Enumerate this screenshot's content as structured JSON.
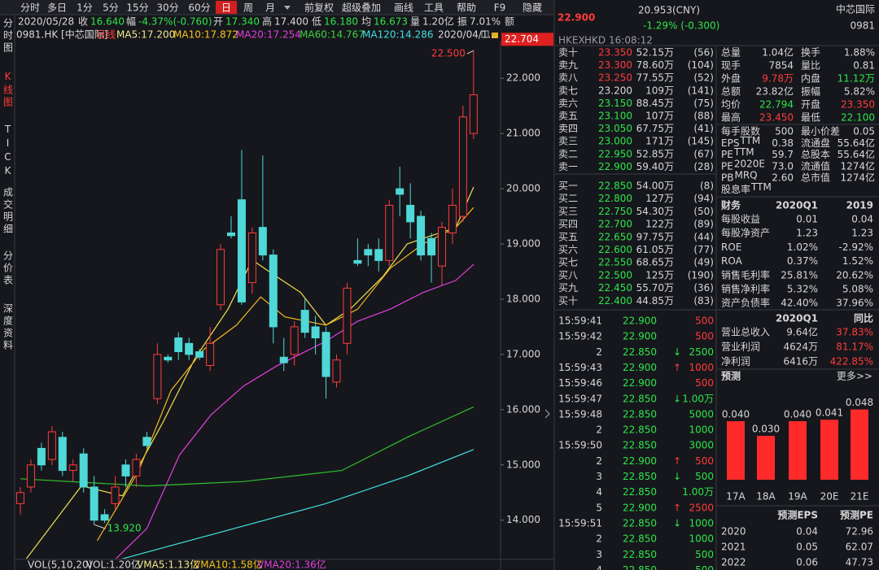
{
  "toolbar": {
    "tabs": [
      "分时",
      "多日",
      "1分",
      "5分",
      "15分",
      "30分",
      "60分",
      "日",
      "周",
      "月"
    ],
    "active": 7,
    "tools": [
      "前复权",
      "超级叠加",
      "画线",
      "工具",
      "帮助",
      "F9",
      "隐藏"
    ]
  },
  "quote_bar": {
    "date": "2020/05/28",
    "items": [
      {
        "label": "收",
        "value": "16.640",
        "color": "#2ee64a"
      },
      {
        "label": "幅",
        "value": "-4.37%(-0.760)",
        "color": "#2ee64a"
      },
      {
        "label": "开",
        "value": "17.340",
        "color": "#2ee64a"
      },
      {
        "label": "高",
        "value": "17.400",
        "color": "#d8d8d8"
      },
      {
        "label": "低",
        "value": "16.180",
        "color": "#2ee64a"
      },
      {
        "label": "均",
        "value": "16.673",
        "color": "#2ee64a"
      },
      {
        "label": "量",
        "value": "1.20亿",
        "color": "#d8d8d8"
      },
      {
        "label": "振",
        "value": "7.01%",
        "color": "#d8d8d8"
      },
      {
        "label": "额"
      }
    ]
  },
  "legend": {
    "symbol": "0981.HK [中芯国际]",
    "period": "日线",
    "ma": [
      {
        "text": "MA5:17.200",
        "color": "#f0e68c"
      },
      {
        "text": "MA10:17.872",
        "color": "#f5c518"
      },
      {
        "text": "MA20:17.254",
        "color": "#e040e0"
      },
      {
        "text": "MA60:14.767",
        "color": "#40d040"
      },
      {
        "text": "MA120:14.286",
        "color": "#40e0e0"
      }
    ],
    "date": "2020/04/1..."
  },
  "sidebar": [
    "分时图",
    "K线图",
    "TICK",
    "成交明细",
    "分价表",
    "深度资料"
  ],
  "sidebar_active": 1,
  "kline": {
    "type": "candlestick",
    "ylim": [
      13.26,
      22.68
    ],
    "yticks": [
      {
        "value": 22,
        "label": "22.000"
      },
      {
        "value": 21,
        "label": "21.000"
      },
      {
        "value": 20,
        "label": "20.000"
      },
      {
        "value": 19,
        "label": "19.000"
      },
      {
        "value": 18,
        "label": "18.000"
      },
      {
        "value": 17,
        "label": "17.000"
      },
      {
        "value": 16,
        "label": "16.000"
      },
      {
        "value": 15,
        "label": "15.000"
      },
      {
        "value": 14,
        "label": "14.000"
      }
    ],
    "last_price": {
      "value": 22.704,
      "label": "22.704"
    },
    "annotations": [
      {
        "label": "22.500",
        "value": 22.5,
        "index": 43
      },
      {
        "label": "13.920",
        "value": 13.92,
        "index": 7
      }
    ],
    "up_color": "#ff3b3b",
    "down_color": "#4fd8d8",
    "ohlc": [
      [
        14.3,
        14.6,
        14.1,
        14.5
      ],
      [
        14.6,
        15.1,
        14.5,
        15.0
      ],
      [
        15.3,
        15.4,
        14.9,
        15.0
      ],
      [
        15.1,
        15.7,
        15.0,
        15.6
      ],
      [
        15.5,
        15.6,
        14.8,
        14.9
      ],
      [
        14.9,
        15.1,
        14.7,
        15.0
      ],
      [
        15.2,
        15.3,
        14.5,
        14.6
      ],
      [
        14.6,
        14.8,
        13.92,
        14.0
      ],
      [
        14.1,
        14.2,
        13.95,
        14.0
      ],
      [
        14.3,
        14.8,
        14.2,
        14.6
      ],
      [
        15.0,
        15.1,
        14.6,
        14.8
      ],
      [
        14.8,
        15.2,
        14.6,
        15.1
      ],
      [
        15.5,
        15.6,
        15.3,
        15.35
      ],
      [
        16.2,
        17.2,
        16.1,
        17.0
      ],
      [
        16.95,
        17.0,
        16.85,
        16.9
      ],
      [
        17.3,
        17.4,
        16.9,
        17.05
      ],
      [
        17.2,
        17.3,
        16.9,
        17.0
      ],
      [
        17.05,
        17.1,
        16.9,
        16.95
      ],
      [
        16.8,
        17.5,
        16.7,
        17.2
      ],
      [
        17.9,
        19.0,
        17.8,
        18.9
      ],
      [
        19.2,
        19.5,
        19.1,
        19.15
      ],
      [
        19.8,
        20.7,
        17.9,
        17.95
      ],
      [
        18.3,
        19.3,
        18.1,
        19.2
      ],
      [
        19.3,
        20.6,
        18.7,
        18.8
      ],
      [
        18.8,
        18.9,
        17.2,
        17.5
      ],
      [
        16.95,
        17.3,
        16.7,
        16.85
      ],
      [
        17.0,
        17.6,
        16.8,
        17.5
      ],
      [
        17.8,
        18.0,
        17.3,
        17.4
      ],
      [
        17.5,
        17.7,
        17.0,
        17.3
      ],
      [
        17.4,
        17.5,
        16.2,
        16.6
      ],
      [
        16.5,
        17.0,
        16.4,
        16.9
      ],
      [
        17.2,
        18.3,
        17.0,
        18.2
      ],
      [
        18.7,
        19.1,
        18.6,
        18.65
      ],
      [
        18.9,
        19.0,
        18.6,
        18.8
      ],
      [
        18.9,
        19.1,
        18.5,
        18.7
      ],
      [
        18.7,
        19.8,
        18.6,
        19.7
      ],
      [
        20.0,
        20.4,
        19.5,
        19.9
      ],
      [
        19.7,
        20.1,
        19.1,
        19.4
      ],
      [
        19.5,
        19.6,
        18.7,
        18.8
      ],
      [
        19.1,
        19.2,
        18.3,
        18.8
      ],
      [
        18.6,
        19.4,
        18.25,
        19.3
      ],
      [
        19.2,
        20.0,
        19.0,
        19.7
      ],
      [
        19.5,
        21.5,
        19.4,
        21.3
      ],
      [
        21.0,
        22.5,
        20.9,
        21.7
      ]
    ],
    "ma_lines": [
      {
        "color": "#f0e050",
        "x": [
          0.4,
          5.8,
          9.7,
          13.5,
          16.6,
          19.7,
          22.0,
          24.3,
          26.6,
          29.0,
          31.3,
          34.4,
          36.7,
          39.0,
          41.3,
          43
        ],
        "values": [
          13.26,
          14.62,
          14.44,
          15.76,
          16.94,
          17.82,
          18.71,
          18.41,
          18.12,
          17.53,
          17.82,
          18.41,
          19.0,
          19.15,
          19.29,
          20.03
        ]
      },
      {
        "color": "#f5b820",
        "x": [
          7.3,
          11.2,
          14.3,
          17.4,
          20.5,
          22.8,
          25.1,
          29.0,
          32.0,
          35.1,
          38.2,
          41.3,
          43
        ],
        "values": [
          13.63,
          14.88,
          16.35,
          17.09,
          17.53,
          18.04,
          17.68,
          17.53,
          17.82,
          18.56,
          19.0,
          19.29,
          19.66
        ]
      },
      {
        "color": "#e040e0",
        "x": [
          8.9,
          12.0,
          15.1,
          18.1,
          21.2,
          24.3,
          29.0,
          32.0,
          35.1,
          38.2,
          41.3,
          43
        ],
        "values": [
          13.27,
          13.85,
          15.18,
          15.91,
          16.43,
          16.79,
          17.24,
          17.6,
          17.82,
          18.12,
          18.34,
          18.63
        ]
      },
      {
        "color": "#30c030",
        "x": [
          0,
          12.0,
          21.2,
          30.5,
          36.7,
          43
        ],
        "values": [
          14.75,
          14.62,
          14.7,
          14.9,
          15.5,
          16.05
        ]
      },
      {
        "color": "#40e0e0",
        "x": [
          5.8,
          17.4,
          29.0,
          36.7,
          43
        ],
        "values": [
          13.1,
          13.7,
          14.3,
          14.8,
          15.28
        ]
      }
    ]
  },
  "volume_legend": [
    {
      "text": "VOL(5,10,20)",
      "color": "#d8d8d8"
    },
    {
      "text": "VOL:1.20亿",
      "color": "#d8d8d8"
    },
    {
      "text": "VMA5:1.13亿",
      "color": "#f0e68c"
    },
    {
      "text": "VMA10:1.58亿",
      "color": "#f5c518"
    },
    {
      "text": "VMA20:1.36亿",
      "color": "#e040e0"
    }
  ],
  "quote": {
    "price": "22.900",
    "cny": "20.953(CNY)",
    "change": "-1.29% (-0.300)",
    "name": "中芯国际",
    "code": "0981",
    "exchange": "HKEX",
    "currency": "HKD",
    "time": "16:08:12"
  },
  "order_book": {
    "asks": [
      {
        "label": "卖十",
        "price": "23.350",
        "volume": "52.15万",
        "count": "(56)",
        "color": "#ff3b3b"
      },
      {
        "label": "卖九",
        "price": "23.300",
        "volume": "78.60万",
        "count": "(104)",
        "color": "#ff3b3b"
      },
      {
        "label": "卖八",
        "price": "23.250",
        "volume": "77.55万",
        "count": "(52)",
        "color": "#ff3b3b"
      },
      {
        "label": "卖七",
        "price": "23.200",
        "volume": "109万",
        "count": "(141)",
        "color": "#d8d8d8"
      },
      {
        "label": "卖六",
        "price": "23.150",
        "volume": "88.45万",
        "count": "(75)",
        "color": "#2ee64a"
      },
      {
        "label": "卖五",
        "price": "23.100",
        "volume": "107万",
        "count": "(88)",
        "color": "#2ee64a"
      },
      {
        "label": "卖四",
        "price": "23.050",
        "volume": "67.75万",
        "count": "(41)",
        "color": "#2ee64a"
      },
      {
        "label": "卖三",
        "price": "23.000",
        "volume": "171万",
        "count": "(145)",
        "color": "#2ee64a"
      },
      {
        "label": "卖二",
        "price": "22.950",
        "volume": "52.85万",
        "count": "(67)",
        "color": "#2ee64a"
      },
      {
        "label": "卖一",
        "price": "22.900",
        "volume": "59.40万",
        "count": "(28)",
        "color": "#2ee64a"
      }
    ],
    "bids": [
      {
        "label": "买一",
        "price": "22.850",
        "volume": "54.00万",
        "count": "(8)",
        "color": "#2ee64a"
      },
      {
        "label": "买二",
        "price": "22.800",
        "volume": "127万",
        "count": "(94)",
        "color": "#2ee64a"
      },
      {
        "label": "买三",
        "price": "22.750",
        "volume": "54.30万",
        "count": "(50)",
        "color": "#2ee64a"
      },
      {
        "label": "买四",
        "price": "22.700",
        "volume": "122万",
        "count": "(89)",
        "color": "#2ee64a"
      },
      {
        "label": "买五",
        "price": "22.650",
        "volume": "97.75万",
        "count": "(44)",
        "color": "#2ee64a"
      },
      {
        "label": "买六",
        "price": "22.600",
        "volume": "61.05万",
        "count": "(77)",
        "color": "#2ee64a"
      },
      {
        "label": "买七",
        "price": "22.550",
        "volume": "68.65万",
        "count": "(49)",
        "color": "#2ee64a"
      },
      {
        "label": "买八",
        "price": "22.500",
        "volume": "125万",
        "count": "(190)",
        "color": "#2ee64a"
      },
      {
        "label": "买九",
        "price": "22.450",
        "volume": "55.70万",
        "count": "(36)",
        "color": "#2ee64a"
      },
      {
        "label": "买十",
        "price": "22.400",
        "volume": "44.85万",
        "count": "(83)",
        "color": "#2ee64a"
      }
    ]
  },
  "trades": [
    {
      "time": "15:59:41",
      "price": "22.900",
      "volume": "500",
      "color": "#ff3b3b"
    },
    {
      "time": "15:59:42",
      "price": "22.900",
      "volume": "500",
      "color": "#ff3b3b"
    },
    {
      "time": "2",
      "price": "22.850",
      "arrow": "↓",
      "volume": "2500",
      "color": "#2ee64a"
    },
    {
      "time": "15:59:43",
      "price": "22.900",
      "arrow": "↑",
      "volume": "1000",
      "color": "#ff3b3b"
    },
    {
      "time": "15:59:46",
      "price": "22.900",
      "volume": "500",
      "color": "#ff3b3b"
    },
    {
      "time": "15:59:47",
      "price": "22.850",
      "arrow": "↓",
      "volume": "1.00万",
      "color": "#2ee64a"
    },
    {
      "time": "15:59:48",
      "price": "22.850",
      "volume": "5000",
      "color": "#2ee64a"
    },
    {
      "time": "2",
      "price": "22.850",
      "volume": "1000",
      "color": "#2ee64a"
    },
    {
      "time": "15:59:50",
      "price": "22.850",
      "volume": "3000",
      "color": "#2ee64a"
    },
    {
      "time": "2",
      "price": "22.900",
      "arrow": "↑",
      "volume": "500",
      "color": "#ff3b3b"
    },
    {
      "time": "3",
      "price": "22.850",
      "arrow": "↓",
      "volume": "500",
      "color": "#2ee64a"
    },
    {
      "time": "4",
      "price": "22.850",
      "volume": "1.00万",
      "color": "#2ee64a"
    },
    {
      "time": "5",
      "price": "22.900",
      "arrow": "↑",
      "volume": "2500",
      "color": "#ff3b3b"
    },
    {
      "time": "15:59:51",
      "price": "22.850",
      "arrow": "↓",
      "volume": "1000",
      "color": "#2ee64a"
    },
    {
      "time": "2",
      "price": "22.850",
      "volume": "1000",
      "color": "#2ee64a"
    },
    {
      "time": "3",
      "price": "22.850",
      "volume": "500",
      "color": "#2ee64a"
    },
    {
      "time": "4",
      "price": "22.850",
      "volume": "500",
      "color": "#2ee64a"
    }
  ],
  "stats": [
    [
      {
        "label": "总量",
        "value": "1.04亿"
      },
      {
        "label": "换手",
        "value": "1.88%"
      }
    ],
    [
      {
        "label": "现手",
        "value": "7854"
      },
      {
        "label": "量比",
        "value": "0.81"
      }
    ],
    [
      {
        "label": "外盘",
        "value": "9.78万",
        "color": "#ff3b3b"
      },
      {
        "label": "内盘",
        "value": "11.12万",
        "color": "#2ee64a"
      }
    ],
    [
      {
        "label": "总额",
        "value": "23.82亿"
      },
      {
        "label": "振幅",
        "value": "5.82%"
      }
    ],
    [
      {
        "label": "均价",
        "value": "22.794",
        "color": "#2ee64a"
      },
      {
        "label": "开盘",
        "value": "23.350",
        "color": "#ff3b3b"
      }
    ],
    [
      {
        "label": "最高",
        "value": "23.450",
        "color": "#ff3b3b"
      },
      {
        "label": "最低",
        "value": "22.100",
        "color": "#2ee64a"
      }
    ]
  ],
  "stats2": [
    [
      {
        "label": "每手股数",
        "value": "500"
      },
      {
        "label": "最小价差",
        "value": "0.05"
      }
    ],
    [
      {
        "label": "EPS",
        "sup": "TTM",
        "value": "0.38"
      },
      {
        "label": "流通盘",
        "value": "55.64亿"
      }
    ],
    [
      {
        "label": "PE",
        "sup": "TTM",
        "value": "59.7"
      },
      {
        "label": "总股本",
        "value": "55.64亿"
      }
    ],
    [
      {
        "label": "PE",
        "sup": "2020E",
        "value": "73.0"
      },
      {
        "label": "流通值",
        "value": "1274亿"
      }
    ],
    [
      {
        "label": "PB",
        "sup": "MRQ",
        "value": "2.60"
      },
      {
        "label": "总市值",
        "value": "1274亿"
      }
    ],
    [
      {
        "label": "股息率",
        "sup": "TTM"
      }
    ]
  ],
  "finance": {
    "header": [
      "财务",
      "2020Q1",
      "2019"
    ],
    "rows": [
      [
        "每股收益",
        "0.01",
        "0.04"
      ],
      [
        "每股净资产",
        "1.23",
        "1.23"
      ],
      [
        "ROE",
        "1.02%",
        "-2.92%"
      ],
      [
        "ROA",
        "0.37%",
        "1.52%"
      ],
      [
        "销售毛利率",
        "25.81%",
        "20.62%"
      ],
      [
        "销售净利率",
        "5.32%",
        "5.08%"
      ],
      [
        "资产负债率",
        "42.40%",
        "37.96%"
      ]
    ]
  },
  "growth": {
    "header": [
      "2020Q1",
      "同比"
    ],
    "rows": [
      [
        "营业总收入",
        "9.64亿",
        "37.83%"
      ],
      [
        "营业利润",
        "4624万",
        "81.17%"
      ],
      [
        "净利润",
        "6416万",
        "422.85%"
      ]
    ],
    "change_color": "#ff3b3b"
  },
  "forecast": {
    "title": "预测",
    "more": "更多>>",
    "chart": {
      "type": "bar",
      "categories": [
        "17A",
        "18A",
        "19A",
        "20E",
        "21E"
      ],
      "values": [
        0.04,
        0.03,
        0.04,
        0.041,
        0.048
      ],
      "value_labels": [
        "0.040",
        "0.030",
        "0.040",
        "0.041",
        "0.048"
      ],
      "color": "#ff2a2a",
      "ylim": [
        0,
        0.05
      ]
    }
  },
  "eps_table": {
    "header": [
      "预测EPS",
      "预测PE"
    ],
    "rows": [
      [
        "2020",
        "0.04",
        "72.96"
      ],
      [
        "2021",
        "0.05",
        "62.07"
      ],
      [
        "2022",
        "0.06",
        "47.73"
      ]
    ]
  }
}
